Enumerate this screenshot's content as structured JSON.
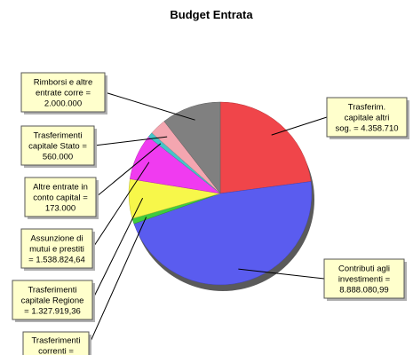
{
  "chart_data": {
    "type": "pie",
    "title": "Budget Entrata",
    "slices": [
      {
        "label": [
          "Trasferim.",
          "capitale altri",
          "sog. = 4.358.710"
        ],
        "value": 4358710,
        "color": "#f0454a"
      },
      {
        "label": [
          "Contributi agli",
          "investimenti =",
          "8.888.080,99"
        ],
        "value": 8888080.99,
        "color": "#5a5cef"
      },
      {
        "label": [
          "Trasferimenti",
          "correnti ="
        ],
        "value": 180000,
        "color": "#3fcc3f"
      },
      {
        "label": [
          "Trasferimenti",
          "capitale Regione",
          "= 1.327.919,36"
        ],
        "value": 1327919.36,
        "color": "#f7f74a"
      },
      {
        "label": [
          "Assunzione di",
          "mutui e prestiti",
          "= 1.538.824,64"
        ],
        "value": 1538824.64,
        "color": "#f03bf0"
      },
      {
        "label": [
          "Altre entrate in",
          "conto capital =",
          "173.000"
        ],
        "value": 173000,
        "color": "#44c4c8"
      },
      {
        "label": [
          "Trasferimenti",
          "capitale Stato =",
          "560.000"
        ],
        "value": 560000,
        "color": "#f4a6b0"
      },
      {
        "label": [
          "Rimborsi e altre",
          "entrate corre =",
          "2.000.000"
        ],
        "value": 2000000,
        "color": "#808080"
      }
    ]
  }
}
